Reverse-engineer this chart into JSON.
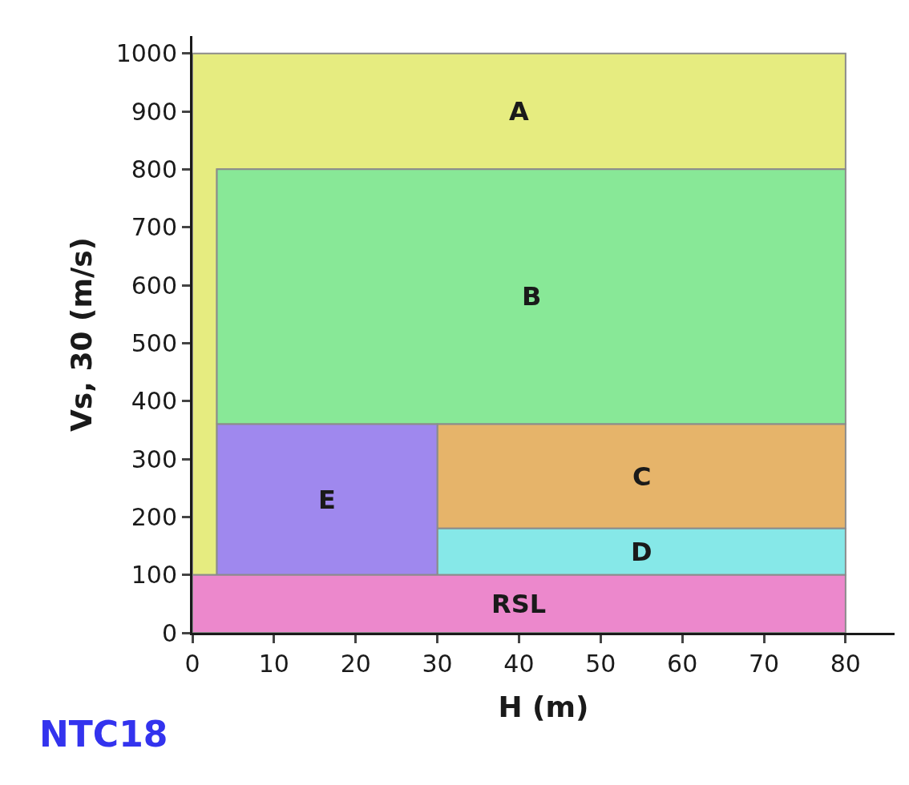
{
  "chart_data": {
    "type": "area",
    "xlabel": "H (m)",
    "ylabel": "Vs, 30 (m/s)",
    "series": [
      {
        "name": "A",
        "color": "#e6ec80",
        "x": [
          0,
          3,
          3,
          80,
          80,
          0,
          0
        ],
        "values": [
          100,
          100,
          800,
          800,
          1000,
          1000,
          100
        ]
      },
      {
        "name": "B",
        "color": "#88e897",
        "x": [
          3,
          80,
          80,
          3,
          3
        ],
        "values": [
          360,
          360,
          800,
          800,
          360
        ]
      },
      {
        "name": "C",
        "color": "#e6b46a",
        "x": [
          30,
          80,
          80,
          30,
          30
        ],
        "values": [
          180,
          180,
          360,
          360,
          180
        ]
      },
      {
        "name": "D",
        "color": "#86e8e8",
        "x": [
          30,
          80,
          80,
          30,
          30
        ],
        "values": [
          100,
          100,
          180,
          180,
          100
        ]
      },
      {
        "name": "E",
        "color": "#9f88ee",
        "x": [
          3,
          30,
          30,
          3,
          3
        ],
        "values": [
          100,
          100,
          360,
          360,
          100
        ]
      },
      {
        "name": "RSL",
        "color": "#ec88cc",
        "x": [
          0,
          80,
          80,
          0,
          0
        ],
        "values": [
          0,
          0,
          100,
          100,
          0
        ]
      }
    ],
    "annotations": [
      "NTC18"
    ],
    "xlim": [
      0,
      86
    ],
    "xticks": [
      0,
      10,
      20,
      30,
      40,
      50,
      60,
      70,
      80
    ],
    "ylim": [
      0,
      1030
    ],
    "yticks": [
      0,
      100,
      200,
      300,
      400,
      500,
      600,
      700,
      800,
      900,
      1000
    ],
    "grid": false,
    "legend": false,
    "line_style": "solid"
  }
}
